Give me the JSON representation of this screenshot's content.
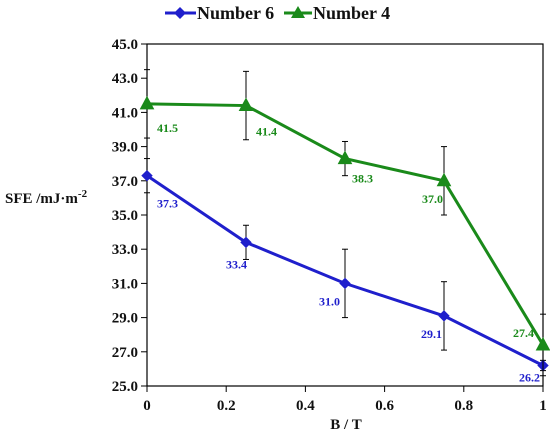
{
  "chart_data": {
    "type": "line",
    "xlabel": "B / T",
    "ylabel": "SFE /mJ·m⁻²",
    "ylim": [
      25.0,
      45.0
    ],
    "xlim": [
      0,
      1
    ],
    "x_ticks": [
      "0",
      "0.2",
      "0.4",
      "0.6",
      "0.8",
      "1"
    ],
    "y_ticks": [
      "25.0",
      "27.0",
      "29.0",
      "31.0",
      "33.0",
      "35.0",
      "37.0",
      "39.0",
      "41.0",
      "43.0",
      "45.0"
    ],
    "grid": false,
    "legend_position": "top",
    "series": [
      {
        "name": "Number 6",
        "color": "#1f1fcc",
        "marker": "diamond",
        "x": [
          0,
          0.25,
          0.5,
          0.75,
          1
        ],
        "values": [
          37.3,
          33.4,
          31.0,
          29.1,
          26.2
        ],
        "labels": [
          "37.3",
          "33.4",
          "31.0",
          "29.1",
          "26.2"
        ],
        "error": [
          1.0,
          1.0,
          2.0,
          2.0,
          0.3
        ]
      },
      {
        "name": "Number 4",
        "color": "#1a8a1a",
        "marker": "triangle",
        "x": [
          0,
          0.25,
          0.5,
          0.75,
          1
        ],
        "values": [
          41.5,
          41.4,
          38.3,
          37.0,
          27.4
        ],
        "labels": [
          "41.5",
          "41.4",
          "38.3",
          "37.0",
          "27.4"
        ],
        "error": [
          2.0,
          2.0,
          1.0,
          2.0,
          1.8
        ]
      }
    ]
  }
}
